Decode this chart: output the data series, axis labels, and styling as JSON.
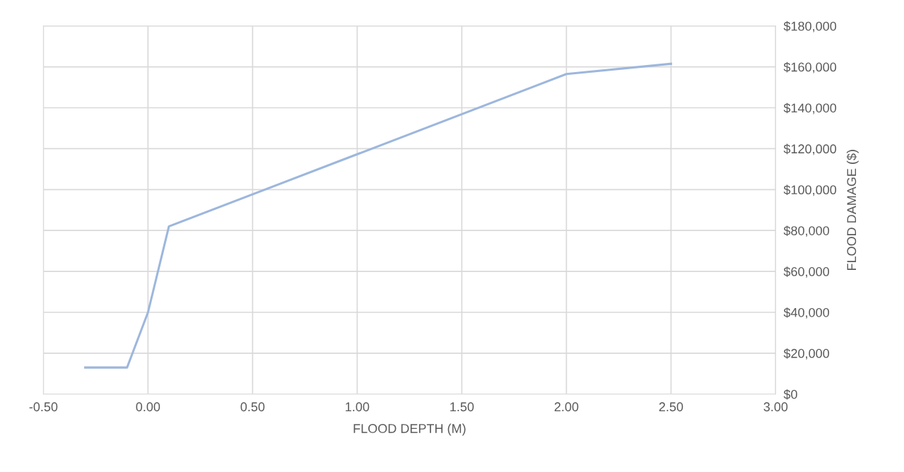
{
  "chart_data": {
    "type": "line",
    "xlabel": "FLOOD DEPTH (M)",
    "ylabel": "FLOOD DAMAGE ($)",
    "series": [
      {
        "color": "#9db7dd",
        "x": [
          -0.3,
          -0.1,
          0.0,
          0.1,
          2.0,
          2.5
        ],
        "values": [
          13000,
          13000,
          40000,
          82000,
          156500,
          161500
        ]
      }
    ],
    "xlim": [
      -0.5,
      3.0
    ],
    "xticks": [
      {
        "value": -0.5,
        "label": "-0.50"
      },
      {
        "value": 0.0,
        "label": "0.00"
      },
      {
        "value": 0.5,
        "label": "0.50"
      },
      {
        "value": 1.0,
        "label": "1.00"
      },
      {
        "value": 1.5,
        "label": "1.50"
      },
      {
        "value": 2.0,
        "label": "2.00"
      },
      {
        "value": 2.5,
        "label": "2.50"
      },
      {
        "value": 3.0,
        "label": "3.00"
      }
    ],
    "ylim": [
      0,
      180000
    ],
    "yticks": [
      {
        "value": 0,
        "label": "$0"
      },
      {
        "value": 20000,
        "label": "$20,000"
      },
      {
        "value": 40000,
        "label": "$40,000"
      },
      {
        "value": 60000,
        "label": "$60,000"
      },
      {
        "value": 80000,
        "label": "$80,000"
      },
      {
        "value": 100000,
        "label": "$100,000"
      },
      {
        "value": 120000,
        "label": "$120,000"
      },
      {
        "value": 140000,
        "label": "$140,000"
      },
      {
        "value": 160000,
        "label": "$160,000"
      },
      {
        "value": 180000,
        "label": "$180,000"
      }
    ],
    "grid": true,
    "legend": false,
    "marker": "none",
    "line_style": "solid"
  }
}
